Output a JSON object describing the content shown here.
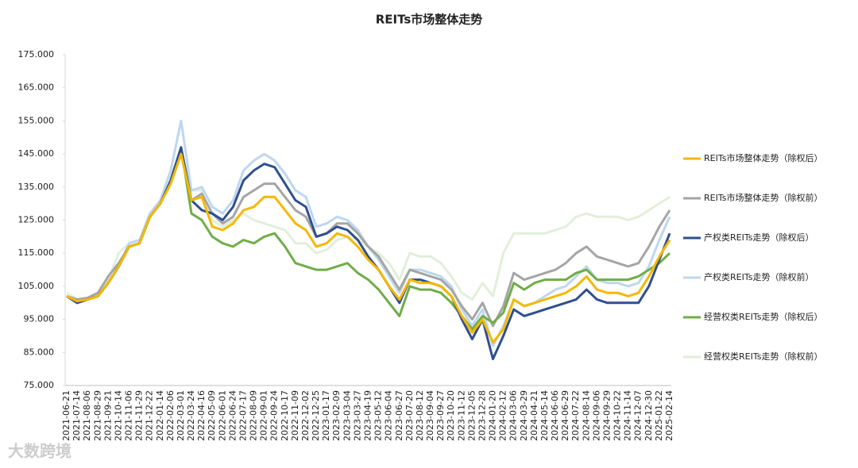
{
  "chart_data": {
    "type": "line",
    "title": "REITs市场整体走势",
    "watermark": "大数跨境",
    "categories": [
      "2021-06-21",
      "2021-07-14",
      "2021-08-06",
      "2021-08-29",
      "2021-09-21",
      "2021-10-14",
      "2021-11-06",
      "2021-11-29",
      "2021-12-22",
      "2022-01-14",
      "2022-02-06",
      "2022-03-01",
      "2022-03-24",
      "2022-04-16",
      "2022-05-09",
      "2022-06-01",
      "2022-06-24",
      "2022-07-17",
      "2022-08-09",
      "2022-09-01",
      "2022-09-24",
      "2022-10-17",
      "2022-11-09",
      "2022-12-02",
      "2022-12-25",
      "2023-01-17",
      "2023-02-09",
      "2023-03-04",
      "2023-03-27",
      "2023-04-19",
      "2023-05-12",
      "2023-06-04",
      "2023-06-27",
      "2023-07-20",
      "2023-08-12",
      "2023-09-04",
      "2023-09-27",
      "2023-10-20",
      "2023-11-12",
      "2023-12-05",
      "2023-12-28",
      "2024-01-20",
      "2024-02-12",
      "2024-03-06",
      "2024-03-29",
      "2024-04-21",
      "2024-05-14",
      "2024-06-06",
      "2024-06-29",
      "2024-07-22",
      "2024-08-14",
      "2024-09-06",
      "2024-09-29",
      "2024-10-22",
      "2024-11-14",
      "2024-12-07",
      "2024-12-30",
      "2025-01-22",
      "2025-02-14"
    ],
    "ylim": [
      75,
      175
    ],
    "yticks": [
      {
        "value": 75,
        "label": "75.000"
      },
      {
        "value": 85,
        "label": "85.000"
      },
      {
        "value": 95,
        "label": "95.000"
      },
      {
        "value": 105,
        "label": "105.000"
      },
      {
        "value": 115,
        "label": "115.000"
      },
      {
        "value": 125,
        "label": "125.000"
      },
      {
        "value": 135,
        "label": "135.000"
      },
      {
        "value": 145,
        "label": "145.000"
      },
      {
        "value": 155,
        "label": "155.000"
      },
      {
        "value": 165,
        "label": "165.000"
      },
      {
        "value": 175,
        "label": "175.000"
      }
    ],
    "legend": "right",
    "series": [
      {
        "name": "经营权类REITs走势（除权前）",
        "color": "#e2efda",
        "values": [
          103,
          101,
          101,
          103,
          107,
          115,
          118,
          119,
          127,
          131,
          138,
          146,
          134,
          134,
          125,
          123,
          125,
          127,
          125,
          124,
          123,
          122,
          118,
          118,
          115,
          116,
          119,
          120,
          119,
          117,
          115,
          112,
          107,
          115,
          114,
          114,
          112,
          108,
          103,
          101,
          106,
          102,
          115,
          121,
          121,
          121,
          121,
          122,
          123,
          126,
          127,
          126,
          126,
          126,
          125,
          126,
          128,
          130,
          132
        ]
      },
      {
        "name": "产权类REITs走势（除权前）",
        "color": "#bdd7ee",
        "values": [
          102,
          100,
          101,
          102,
          106,
          111,
          118,
          119,
          127,
          131,
          140,
          155,
          134,
          135,
          129,
          127,
          131,
          140,
          143,
          145,
          143,
          139,
          134,
          132,
          123,
          124,
          126,
          125,
          122,
          117,
          113,
          108,
          103,
          110,
          110,
          109,
          108,
          105,
          98,
          93,
          98,
          87,
          93,
          101,
          99,
          100,
          102,
          104,
          105,
          108,
          111,
          107,
          106,
          106,
          105,
          106,
          111,
          119,
          126
        ]
      },
      {
        "name": "REITs市场整体走势（除权前）",
        "color": "#a5a5a5",
        "values": [
          102,
          101,
          101.5,
          103,
          108,
          112,
          117,
          118,
          126,
          130,
          136,
          145,
          131,
          133,
          127,
          124,
          126,
          132,
          134,
          136,
          136,
          132,
          128,
          126,
          120,
          121,
          124,
          124,
          121,
          117,
          114,
          109,
          104,
          110,
          109,
          108,
          107,
          104,
          99,
          95,
          100,
          93,
          99,
          109,
          107,
          108,
          109,
          110,
          112,
          115,
          117,
          114,
          113,
          112,
          111,
          112,
          117,
          123,
          128
        ]
      },
      {
        "name": "经营权类REITs走势（除权后）",
        "color": "#70ad47",
        "values": [
          102,
          100,
          101,
          102,
          106,
          111,
          117,
          118,
          126,
          130,
          137,
          147,
          127,
          125,
          120,
          118,
          117,
          119,
          118,
          120,
          121,
          117,
          112,
          111,
          110,
          110,
          111,
          112,
          109,
          107,
          104,
          100,
          96,
          105,
          104,
          104,
          103,
          100,
          96,
          92,
          96,
          94,
          97,
          106,
          104,
          106,
          107,
          107,
          107,
          109,
          110,
          107,
          107,
          107,
          107,
          108,
          110,
          112,
          115
        ]
      },
      {
        "name": "产权类REITs走势（除权后）",
        "color": "#2f4f8f",
        "values": [
          102,
          100,
          101,
          102,
          106,
          111,
          117,
          118,
          126,
          130,
          137,
          147,
          131,
          128,
          127,
          125,
          129,
          137,
          140,
          142,
          141,
          136,
          131,
          129,
          120,
          121,
          123,
          122,
          119,
          114,
          110,
          105,
          100,
          107,
          107,
          106,
          105,
          102,
          95,
          89,
          95,
          83,
          90,
          98,
          96,
          97,
          98,
          99,
          100,
          101,
          104,
          101,
          100,
          100,
          100,
          100,
          105,
          113,
          121
        ]
      },
      {
        "name": "REITs市场整体走势（除权后）",
        "color": "#f5b800",
        "values": [
          102,
          100.5,
          101,
          102,
          106,
          111,
          117,
          118,
          126,
          130,
          136,
          145,
          131,
          132,
          123,
          122,
          124,
          128,
          129,
          132,
          132,
          128,
          124,
          122,
          117,
          118,
          121,
          120,
          117,
          113,
          110,
          105,
          101,
          107,
          106,
          106,
          105,
          102,
          96,
          91,
          95,
          88,
          92,
          101,
          99,
          100,
          101,
          102,
          103,
          105,
          108,
          104,
          103,
          103,
          102,
          103,
          108,
          114,
          119
        ]
      }
    ]
  }
}
